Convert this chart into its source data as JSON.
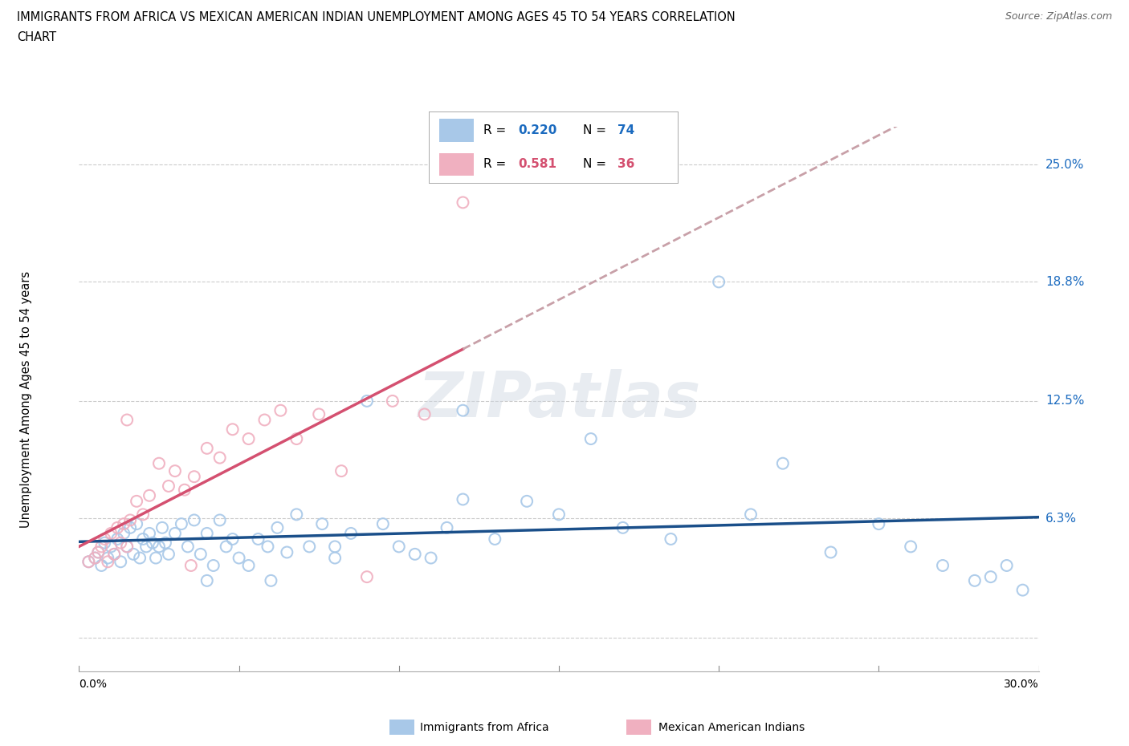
{
  "title_line1": "IMMIGRANTS FROM AFRICA VS MEXICAN AMERICAN INDIAN UNEMPLOYMENT AMONG AGES 45 TO 54 YEARS CORRELATION",
  "title_line2": "CHART",
  "source": "Source: ZipAtlas.com",
  "ylabel": "Unemployment Among Ages 45 to 54 years",
  "ytick_vals": [
    0.0,
    0.063,
    0.125,
    0.188,
    0.25
  ],
  "ytick_labels": [
    "",
    "6.3%",
    "12.5%",
    "18.8%",
    "25.0%"
  ],
  "xlim": [
    0.0,
    0.3
  ],
  "ylim": [
    -0.018,
    0.27
  ],
  "color_africa": "#a8c8e8",
  "color_mexican": "#f0b0c0",
  "trendline_africa_color": "#1a4f8a",
  "trendline_mexican_solid_color": "#d45070",
  "trendline_mexican_dashed_color": "#c8a0a8",
  "watermark": "ZIPatlas",
  "legend_label_africa": "Immigrants from Africa",
  "legend_label_mexican": "Mexican American Indians",
  "africa_x": [
    0.003,
    0.005,
    0.006,
    0.007,
    0.008,
    0.009,
    0.01,
    0.011,
    0.012,
    0.013,
    0.014,
    0.015,
    0.016,
    0.017,
    0.018,
    0.019,
    0.02,
    0.021,
    0.022,
    0.023,
    0.024,
    0.025,
    0.026,
    0.027,
    0.028,
    0.03,
    0.032,
    0.034,
    0.036,
    0.038,
    0.04,
    0.042,
    0.044,
    0.046,
    0.048,
    0.05,
    0.053,
    0.056,
    0.059,
    0.062,
    0.065,
    0.068,
    0.072,
    0.076,
    0.08,
    0.085,
    0.09,
    0.095,
    0.1,
    0.105,
    0.11,
    0.115,
    0.12,
    0.13,
    0.14,
    0.15,
    0.16,
    0.17,
    0.185,
    0.2,
    0.21,
    0.22,
    0.235,
    0.25,
    0.26,
    0.27,
    0.28,
    0.285,
    0.29,
    0.295,
    0.04,
    0.06,
    0.08,
    0.12
  ],
  "africa_y": [
    0.04,
    0.042,
    0.045,
    0.038,
    0.05,
    0.042,
    0.048,
    0.044,
    0.052,
    0.04,
    0.055,
    0.048,
    0.058,
    0.044,
    0.06,
    0.042,
    0.052,
    0.048,
    0.055,
    0.05,
    0.042,
    0.048,
    0.058,
    0.05,
    0.044,
    0.055,
    0.06,
    0.048,
    0.062,
    0.044,
    0.055,
    0.038,
    0.062,
    0.048,
    0.052,
    0.042,
    0.038,
    0.052,
    0.048,
    0.058,
    0.045,
    0.065,
    0.048,
    0.06,
    0.048,
    0.055,
    0.125,
    0.06,
    0.048,
    0.044,
    0.042,
    0.058,
    0.073,
    0.052,
    0.072,
    0.065,
    0.105,
    0.058,
    0.052,
    0.188,
    0.065,
    0.092,
    0.045,
    0.06,
    0.048,
    0.038,
    0.03,
    0.032,
    0.038,
    0.025,
    0.03,
    0.03,
    0.042,
    0.12
  ],
  "mexican_x": [
    0.003,
    0.005,
    0.006,
    0.007,
    0.008,
    0.009,
    0.01,
    0.011,
    0.012,
    0.013,
    0.014,
    0.015,
    0.016,
    0.018,
    0.02,
    0.022,
    0.025,
    0.028,
    0.03,
    0.033,
    0.036,
    0.04,
    0.044,
    0.048,
    0.053,
    0.058,
    0.063,
    0.068,
    0.075,
    0.082,
    0.09,
    0.098,
    0.108,
    0.12,
    0.015,
    0.035
  ],
  "mexican_y": [
    0.04,
    0.042,
    0.045,
    0.048,
    0.052,
    0.04,
    0.055,
    0.044,
    0.058,
    0.05,
    0.06,
    0.048,
    0.062,
    0.072,
    0.065,
    0.075,
    0.092,
    0.08,
    0.088,
    0.078,
    0.085,
    0.1,
    0.095,
    0.11,
    0.105,
    0.115,
    0.12,
    0.105,
    0.118,
    0.088,
    0.032,
    0.125,
    0.118,
    0.23,
    0.115,
    0.038
  ]
}
